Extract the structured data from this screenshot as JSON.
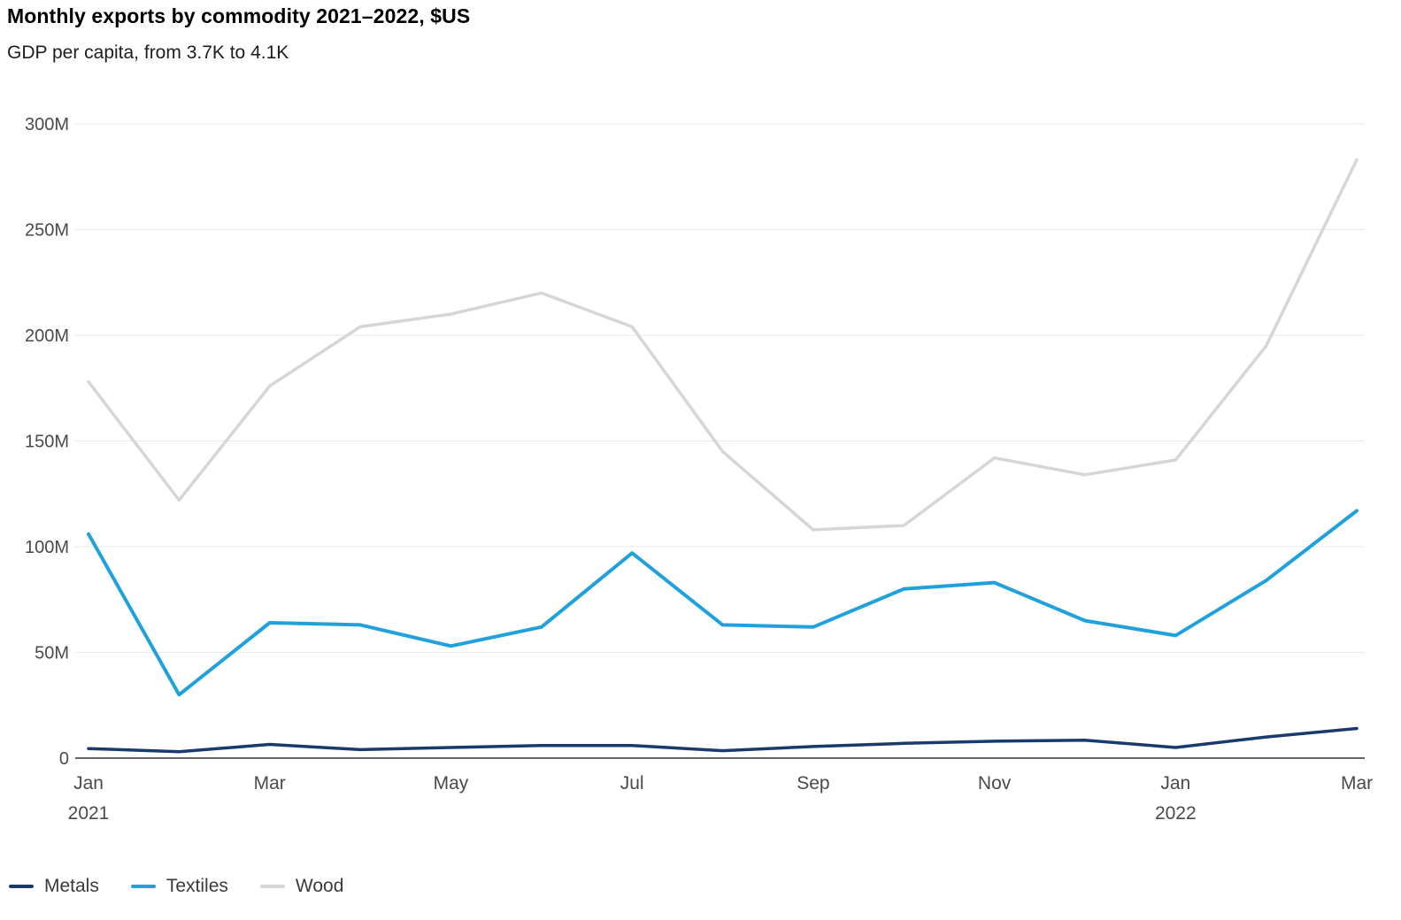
{
  "header": {
    "title": "Monthly exports by commodity 2021–2022, $US",
    "subtitle": "GDP per capita, from 3.7K to 4.1K"
  },
  "chart_data": {
    "type": "line",
    "x": [
      "Jan 2021",
      "Feb 2021",
      "Mar 2021",
      "Apr 2021",
      "May 2021",
      "Jun 2021",
      "Jul 2021",
      "Aug 2021",
      "Sep 2021",
      "Oct 2021",
      "Nov 2021",
      "Dec 2021",
      "Jan 2022",
      "Feb 2022",
      "Mar 2022"
    ],
    "series": [
      {
        "name": "Metals",
        "color": "#1a3a6e",
        "values": [
          4.5,
          3,
          6.5,
          4,
          5,
          6,
          6,
          3.5,
          5.5,
          7,
          8,
          8.5,
          5,
          10,
          14
        ]
      },
      {
        "name": "Textiles",
        "color": "#21a1dc",
        "values": [
          106,
          30,
          64,
          63,
          53,
          62,
          97,
          63,
          62,
          80,
          83,
          65,
          58,
          84,
          117
        ]
      },
      {
        "name": "Wood",
        "color": "#d6d6d6",
        "values": [
          178,
          122,
          176,
          204,
          210,
          220,
          204,
          145,
          108,
          110,
          142,
          134,
          141,
          195,
          283
        ]
      }
    ],
    "unit": "M $US",
    "ylim": [
      0,
      300
    ],
    "y_ticks": [
      {
        "value": 0,
        "label": "0"
      },
      {
        "value": 50,
        "label": "50M"
      },
      {
        "value": 100,
        "label": "100M"
      },
      {
        "value": 150,
        "label": "150M"
      },
      {
        "value": 200,
        "label": "200M"
      },
      {
        "value": 250,
        "label": "250M"
      },
      {
        "value": 300,
        "label": "300M"
      }
    ],
    "x_ticks": [
      {
        "index": 0,
        "label": "Jan",
        "year": "2021"
      },
      {
        "index": 2,
        "label": "Mar"
      },
      {
        "index": 4,
        "label": "May"
      },
      {
        "index": 6,
        "label": "Jul"
      },
      {
        "index": 8,
        "label": "Sep"
      },
      {
        "index": 10,
        "label": "Nov"
      },
      {
        "index": 12,
        "label": "Jan",
        "year": "2022"
      },
      {
        "index": 14,
        "label": "Mar"
      }
    ],
    "grid": "horizontal",
    "legend_position": "bottom-left",
    "title": "Monthly exports by commodity 2021–2022, $US",
    "subtitle": "GDP per capita, from 3.7K to 4.1K"
  },
  "legend": {
    "items": [
      {
        "label": "Metals",
        "color": "#1a3a6e"
      },
      {
        "label": "Textiles",
        "color": "#21a1dc"
      },
      {
        "label": "Wood",
        "color": "#d6d6d6"
      }
    ]
  },
  "style": {
    "gridline_color": "#e9e9e9",
    "axis_color": "#333333",
    "tick_label_color": "#4a4a4a"
  }
}
